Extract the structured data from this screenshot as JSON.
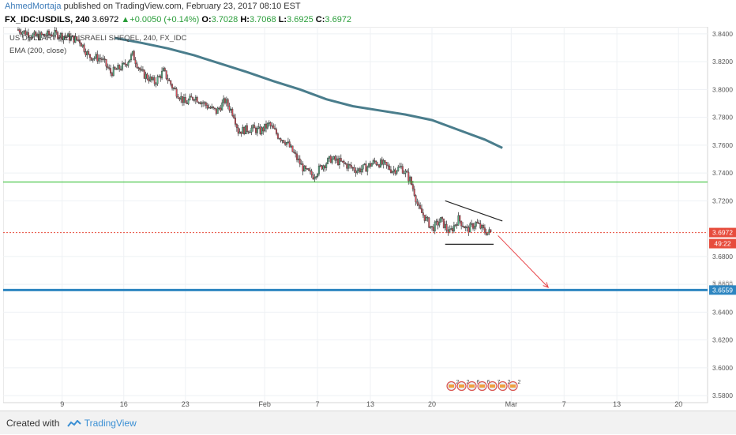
{
  "header": {
    "author": "AhmedMortaja",
    "published_text": " published on TradingView.com, February 23, 2017 08:10 EST"
  },
  "quote": {
    "symbol": "FX_IDC:USDILS, 240",
    "last": "3.6972",
    "change": "+0.0050 (+0.14%)",
    "o_label": "O:",
    "o": "3.7028",
    "h_label": "H:",
    "h": "3.7068",
    "l_label": "L:",
    "l": "3.6925",
    "c_label": "C:",
    "c": "3.6972"
  },
  "chart_data": {
    "type": "candlestick",
    "title": "US DOLLAR / NEW ISRAELI SHEQEL, 240, FX_IDC",
    "indicator": "EMA (200, close)",
    "ylim": [
      3.575,
      3.845
    ],
    "y_ticks": [
      "3.8400",
      "3.8200",
      "3.8000",
      "3.7800",
      "3.7600",
      "3.7400",
      "3.7200",
      "3.6800",
      "3.6600",
      "3.6400",
      "3.6200",
      "3.6000",
      "3.5800"
    ],
    "x_ticks": [
      {
        "label": "9",
        "day": 0
      },
      {
        "label": "16",
        "day": 7
      },
      {
        "label": "23",
        "day": 14
      },
      {
        "label": "Feb",
        "day": 23
      },
      {
        "label": "7",
        "day": 29
      },
      {
        "label": "13",
        "day": 35
      },
      {
        "label": "20",
        "day": 42
      },
      {
        "label": "Mar",
        "day": 51
      },
      {
        "label": "7",
        "day": 57
      },
      {
        "label": "13",
        "day": 63
      },
      {
        "label": "20",
        "day": 70
      }
    ],
    "x_range_days": [
      -6.7,
      73.3
    ],
    "close_path": [
      [
        -5.0,
        3.843
      ],
      [
        -3.0,
        3.838
      ],
      [
        -1.0,
        3.84
      ],
      [
        0.5,
        3.838
      ],
      [
        2.0,
        3.835
      ],
      [
        3.0,
        3.824
      ],
      [
        4.5,
        3.822
      ],
      [
        5.5,
        3.812
      ],
      [
        7.0,
        3.817
      ],
      [
        8.0,
        3.825
      ],
      [
        9.0,
        3.812
      ],
      [
        10.5,
        3.805
      ],
      [
        11.5,
        3.813
      ],
      [
        12.5,
        3.802
      ],
      [
        14.0,
        3.79
      ],
      [
        15.0,
        3.795
      ],
      [
        16.5,
        3.788
      ],
      [
        17.5,
        3.784
      ],
      [
        18.5,
        3.792
      ],
      [
        19.5,
        3.782
      ],
      [
        20.0,
        3.77
      ],
      [
        21.5,
        3.772
      ],
      [
        22.5,
        3.77
      ],
      [
        23.5,
        3.775
      ],
      [
        24.5,
        3.767
      ],
      [
        25.5,
        3.762
      ],
      [
        26.5,
        3.752
      ],
      [
        27.5,
        3.742
      ],
      [
        28.5,
        3.738
      ],
      [
        29.5,
        3.745
      ],
      [
        30.5,
        3.75
      ],
      [
        31.5,
        3.748
      ],
      [
        32.5,
        3.745
      ],
      [
        33.5,
        3.742
      ],
      [
        34.5,
        3.744
      ],
      [
        35.5,
        3.748
      ],
      [
        36.5,
        3.746
      ],
      [
        37.5,
        3.742
      ],
      [
        38.5,
        3.744
      ],
      [
        39.0,
        3.74
      ],
      [
        39.5,
        3.735
      ],
      [
        40.0,
        3.726
      ],
      [
        40.5,
        3.714
      ],
      [
        41.0,
        3.71
      ],
      [
        42.0,
        3.7
      ],
      [
        43.0,
        3.706
      ],
      [
        44.0,
        3.697
      ],
      [
        45.0,
        3.707
      ],
      [
        46.0,
        3.699
      ],
      [
        47.0,
        3.704
      ],
      [
        48.0,
        3.698
      ],
      [
        48.8,
        3.697
      ]
    ],
    "ema_200": [
      [
        6.0,
        3.837
      ],
      [
        9.0,
        3.8335
      ],
      [
        12.0,
        3.8295
      ],
      [
        15.0,
        3.8245
      ],
      [
        18.0,
        3.8185
      ],
      [
        21.0,
        3.8125
      ],
      [
        24.0,
        3.806
      ],
      [
        27.0,
        3.8
      ],
      [
        30.0,
        3.793
      ],
      [
        33.0,
        3.788
      ],
      [
        36.0,
        3.785
      ],
      [
        39.0,
        3.782
      ],
      [
        42.0,
        3.778
      ],
      [
        45.0,
        3.771
      ],
      [
        48.0,
        3.764
      ],
      [
        50.0,
        3.758
      ]
    ],
    "levels": {
      "support_green": 3.7335,
      "last_price": 3.6972,
      "target_blue": 3.6559
    },
    "price_labels": {
      "last": "3.6972",
      "countdown": "49:22",
      "target": "3.6559",
      "hidden_above_target": "3.6600"
    },
    "triangle": {
      "upper_start": [
        43.5,
        3.72
      ],
      "upper_end": [
        50.0,
        3.7055
      ],
      "lower_start": [
        43.5,
        3.6888
      ],
      "lower_end": [
        49.0,
        3.6888
      ]
    },
    "arrow": {
      "from": [
        49.5,
        3.695
      ],
      "to": [
        55.2,
        3.6578
      ]
    },
    "event_markers": [
      "2",
      "2",
      "6",
      "6",
      "7",
      "2",
      "2"
    ],
    "colors": {
      "up": "#53b987",
      "down": "#eb4d5c",
      "ema": "#4a7d8c",
      "support": "#22bb22",
      "target": "#2e86c1",
      "price_line": "#e74c3c",
      "arrow": "#e8454a",
      "grid": "#eef1f4"
    }
  },
  "footer": {
    "created_with": "Created with",
    "brand": "TradingView"
  }
}
